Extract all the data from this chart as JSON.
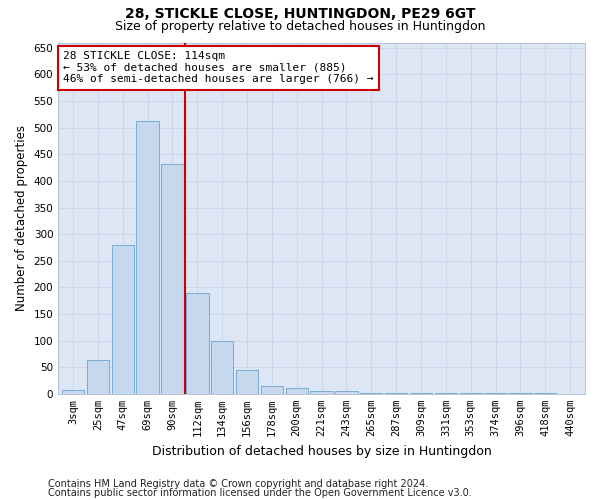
{
  "title1": "28, STICKLE CLOSE, HUNTINGDON, PE29 6GT",
  "title2": "Size of property relative to detached houses in Huntingdon",
  "xlabel": "Distribution of detached houses by size in Huntingdon",
  "ylabel": "Number of detached properties",
  "footer1": "Contains HM Land Registry data © Crown copyright and database right 2024.",
  "footer2": "Contains public sector information licensed under the Open Government Licence v3.0.",
  "bar_labels": [
    "3sqm",
    "25sqm",
    "47sqm",
    "69sqm",
    "90sqm",
    "112sqm",
    "134sqm",
    "156sqm",
    "178sqm",
    "200sqm",
    "221sqm",
    "243sqm",
    "265sqm",
    "287sqm",
    "309sqm",
    "331sqm",
    "353sqm",
    "374sqm",
    "396sqm",
    "418sqm",
    "440sqm"
  ],
  "bar_values": [
    8,
    63,
    280,
    513,
    432,
    190,
    100,
    45,
    15,
    10,
    5,
    5,
    2,
    2,
    2,
    2,
    2,
    2,
    2,
    2,
    0
  ],
  "bar_color": "#c5d8ee",
  "bar_edge_color": "#7aadd4",
  "vline_color": "#cc0000",
  "vline_x_index": 4.5,
  "annotation_text": "28 STICKLE CLOSE: 114sqm\n← 53% of detached houses are smaller (885)\n46% of semi-detached houses are larger (766) →",
  "annotation_box_facecolor": "#ffffff",
  "annotation_box_edgecolor": "#cc0000",
  "ylim": [
    0,
    660
  ],
  "yticks": [
    0,
    50,
    100,
    150,
    200,
    250,
    300,
    350,
    400,
    450,
    500,
    550,
    600,
    650
  ],
  "grid_color": "#c8d4e4",
  "plot_bg_color": "#dce6f5",
  "title1_fontsize": 10,
  "title2_fontsize": 9,
  "xlabel_fontsize": 9,
  "ylabel_fontsize": 8.5,
  "tick_fontsize": 7.5,
  "annotation_fontsize": 8,
  "footer_fontsize": 7
}
